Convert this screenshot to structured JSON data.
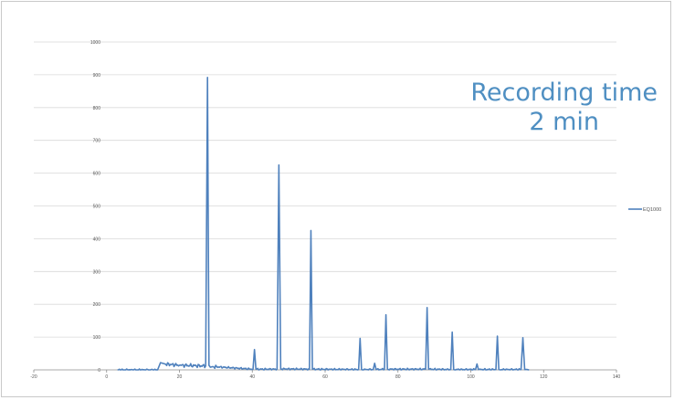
{
  "chart_data": {
    "type": "line",
    "title": "",
    "xlabel": "",
    "ylabel": "",
    "xlim": [
      -20,
      140
    ],
    "ylim": [
      0,
      1000
    ],
    "x_ticks": [
      -20,
      0,
      20,
      40,
      60,
      80,
      100,
      120,
      140
    ],
    "y_ticks": [
      0,
      100,
      200,
      300,
      400,
      500,
      600,
      700,
      800,
      900,
      1000
    ],
    "grid": "horizontal",
    "legend_position": "right",
    "annotation": [
      "Recording time",
      "2 min"
    ],
    "colors": {
      "series": "#4f81bd",
      "annotation": "#4f8fc2",
      "grid": "#d9d9d9",
      "axis": "#8c8c8c"
    },
    "series": [
      {
        "name": "EQ1000",
        "x": [
          3,
          14,
          14.8,
          16,
          20,
          27.2,
          27.7,
          28.1,
          28.5,
          29.2,
          40.2,
          40.6,
          41.0,
          46.8,
          47.3,
          47.8,
          55.7,
          56.1,
          56.5,
          69.2,
          69.6,
          70.0,
          73.2,
          73.6,
          74.0,
          76.3,
          76.7,
          77.1,
          87.6,
          88.0,
          88.4,
          94.5,
          94.9,
          95.3,
          101.3,
          101.7,
          102.1,
          106.9,
          107.3,
          107.7,
          113.8,
          114.3,
          114.8,
          116
        ],
        "y": [
          0,
          0,
          22,
          18,
          14,
          12,
          892,
          14,
          8,
          10,
          2,
          62,
          2,
          2,
          625,
          3,
          2,
          425,
          2,
          1,
          96,
          1,
          1,
          20,
          1,
          2,
          168,
          2,
          2,
          190,
          2,
          1,
          115,
          1,
          1,
          18,
          1,
          1,
          103,
          1,
          1,
          98,
          1,
          0
        ]
      }
    ]
  }
}
